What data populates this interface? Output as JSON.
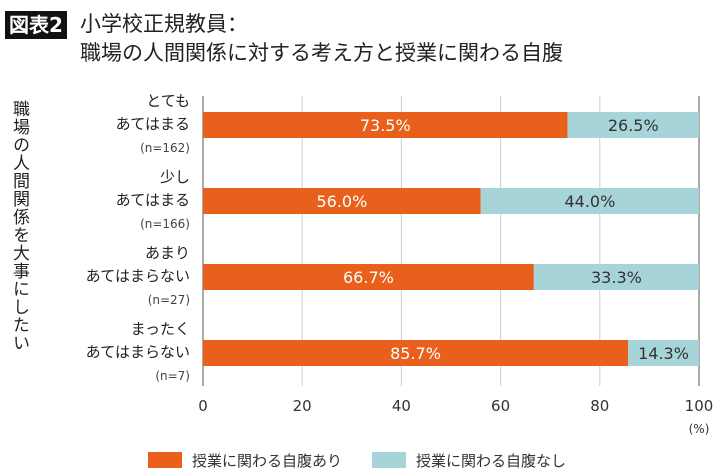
{
  "title": {
    "badge": "図表2",
    "line1": "小学校正規教員：",
    "line2": "職場の人間関係に対する考え方と授業に関わる自腹"
  },
  "chart_data": {
    "type": "bar",
    "stacked": true,
    "orientation": "horizontal",
    "ylabel": "職場の人間関係を大事にしたい",
    "xlabel": "(%)",
    "xlim": [
      0,
      100
    ],
    "xticks": [
      "0",
      "20",
      "40",
      "60",
      "80",
      "100"
    ],
    "grid": true,
    "legend": "bottom",
    "categories": [
      {
        "lines": [
          "とても",
          "あてはまる"
        ],
        "n": "(n=162)"
      },
      {
        "lines": [
          "少し",
          "あてはまる"
        ],
        "n": "(n=166)"
      },
      {
        "lines": [
          "あまり",
          "あてはまらない"
        ],
        "n": "(n=27)"
      },
      {
        "lines": [
          "まったく",
          "あてはまらない"
        ],
        "n": "(n=7)"
      }
    ],
    "series": [
      {
        "name": "授業に関わる自腹あり",
        "color": "#E8601C",
        "values": [
          73.5,
          56.0,
          66.7,
          85.7
        ],
        "labels": [
          "73.5%",
          "56.0%",
          "66.7%",
          "85.7%"
        ]
      },
      {
        "name": "授業に関わる自腹なし",
        "color": "#A6D4D9",
        "values": [
          26.5,
          44.0,
          33.3,
          14.3
        ],
        "labels": [
          "26.5%",
          "44.0%",
          "33.3%",
          "14.3%"
        ]
      }
    ]
  }
}
